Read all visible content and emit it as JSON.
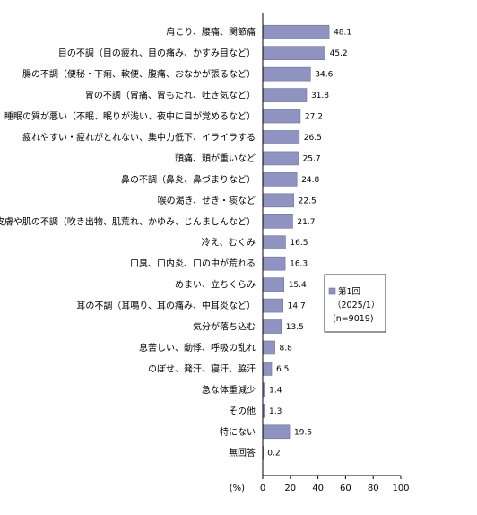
{
  "chart_data": {
    "type": "bar",
    "orientation": "horizontal",
    "categories": [
      "肩こり、腰痛、関節痛",
      "目の不調（目の疲れ、目の痛み、かすみ目など）",
      "腸の不調（便秘・下痢、軟便、腹痛、おなかが張るなど）",
      "胃の不調（胃痛、胃もたれ、吐き気など）",
      "睡眠の質が悪い（不眠、眠りが浅い、夜中に目が覚めるなど）",
      "疲れやすい・疲れがとれない、集中力低下、イライラする",
      "頭痛、頭が重いなど",
      "鼻の不調（鼻炎、鼻づまりなど）",
      "喉の渇き、せき・痰など",
      "皮膚や肌の不調（吹き出物、肌荒れ、かゆみ、じんましんなど）",
      "冷え、むくみ",
      "口臭、口内炎、口の中が荒れる",
      "めまい、立ちくらみ",
      "耳の不調（耳鳴り、耳の痛み、中耳炎など）",
      "気分が落ち込む",
      "息苦しい、動悸、呼吸の乱れ",
      "のぼせ、発汗、寝汗、脇汗",
      "急な体重減少",
      "その他",
      "特にない",
      "無回答"
    ],
    "series": [
      {
        "name": "第1回",
        "values": [
          48.1,
          45.2,
          34.6,
          31.8,
          27.2,
          26.5,
          25.7,
          24.8,
          22.5,
          21.7,
          16.5,
          16.3,
          15.4,
          14.7,
          13.5,
          8.8,
          6.5,
          1.4,
          1.3,
          19.5,
          0.2
        ],
        "value_labels": [
          "48.1",
          "45.2",
          "34.6",
          "31.8",
          "27.2",
          "26.5",
          "25.7",
          "24.8",
          "22.5",
          "21.7",
          "16.5",
          "16.3",
          "15.4",
          "14.7",
          "13.5",
          "8.8",
          "6.5",
          "1.4",
          "1.3",
          "19.5",
          "0.2"
        ]
      }
    ],
    "xlim": [
      0,
      100
    ],
    "x_ticks": [
      "0",
      "20",
      "40",
      "60",
      "80",
      "100"
    ],
    "x_unit_label": "(%)",
    "grid": false,
    "legend": {
      "placement": "right-middle",
      "lines": [
        "第1回",
        "（2025/1）",
        "(n=9019)"
      ]
    },
    "colors": {
      "bar_fill": "#8f93c2",
      "bar_stroke": "#6c70a2",
      "axis": "#000000"
    }
  }
}
